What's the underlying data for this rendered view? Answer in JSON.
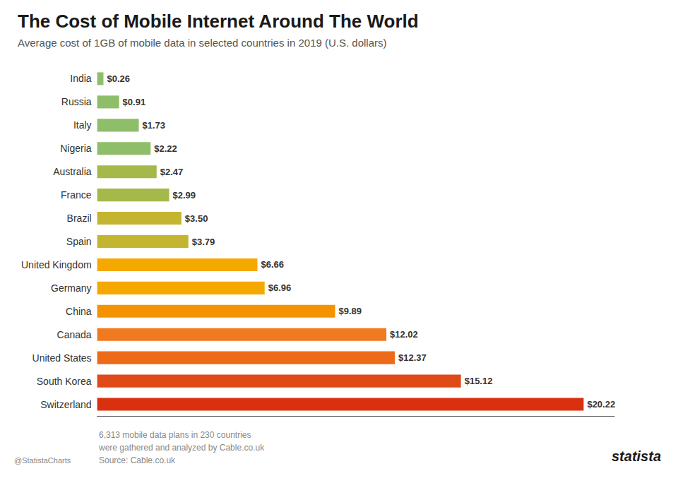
{
  "chart_data": {
    "type": "bar",
    "orientation": "horizontal",
    "title": "The Cost of Mobile Internet Around The World",
    "subtitle": "Average cost of 1GB of mobile data in selected countries in 2019 (U.S. dollars)",
    "categories": [
      "India",
      "Russia",
      "Italy",
      "Nigeria",
      "Australia",
      "France",
      "Brazil",
      "Spain",
      "United Kingdom",
      "Germany",
      "China",
      "Canada",
      "United States",
      "South Korea",
      "Switzerland"
    ],
    "values": [
      0.26,
      0.91,
      1.73,
      2.22,
      2.47,
      2.99,
      3.5,
      3.79,
      6.66,
      6.96,
      9.89,
      12.02,
      12.37,
      15.12,
      20.22
    ],
    "value_labels": [
      "$0.26",
      "$0.91",
      "$1.73",
      "$2.22",
      "$2.47",
      "$2.99",
      "$3.50",
      "$3.79",
      "$6.66",
      "$6.96",
      "$9.89",
      "$12.02",
      "$12.37",
      "$15.12",
      "$20.22"
    ],
    "colors": [
      "#8fbe6a",
      "#8fbe6a",
      "#8fbe6a",
      "#8fbe6a",
      "#a5b84a",
      "#a5b84a",
      "#c4b530",
      "#c4b530",
      "#f5a800",
      "#f5a800",
      "#f59200",
      "#f07a20",
      "#ec6a18",
      "#e04a18",
      "#d93010"
    ],
    "xlim": [
      0,
      21.5
    ],
    "grid": false,
    "tick_labels": "y",
    "data_labels": true,
    "annotations": [
      "6,313 mobile data plans in 230 countries",
      "were gathered and analyzed by Cable.co.uk",
      "Source: Cable.co.uk",
      "@StatistaCharts",
      "statista"
    ]
  }
}
